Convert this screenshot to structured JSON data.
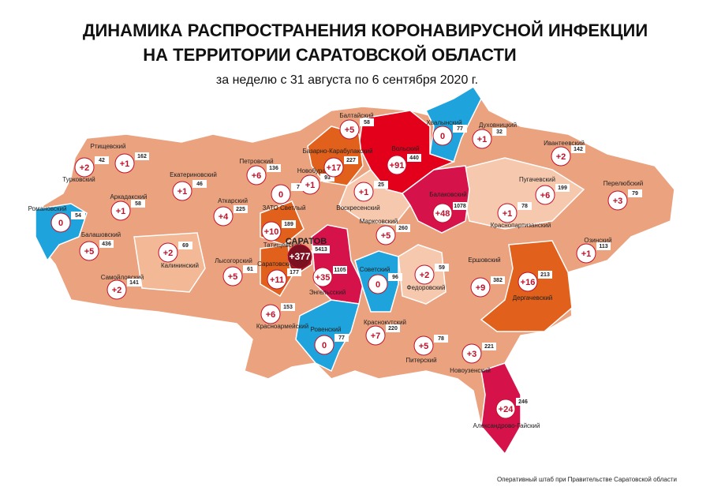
{
  "header": {
    "title_line1": "ДИНАМИКА РАСПРОСТРАНЕНИЯ КОРОНАВИРУСНОЙ ИНФЕКЦИИ",
    "title_line2": "НА ТЕРРИТОРИИ САРАТОВСКОЙ ОБЛАСТИ",
    "subtitle": "за неделю с 31 августа по 6 сентября 2020 г."
  },
  "districts": [
    {
      "name": "Турковский",
      "increase": "+2",
      "total": 42
    },
    {
      "name": "Ртищевский",
      "increase": "+1",
      "total": 162
    },
    {
      "name": "Аркадакский",
      "increase": "+1",
      "total": 58
    },
    {
      "name": "Романовский",
      "increase": "0",
      "total": 54
    },
    {
      "name": "Балашовский",
      "increase": "+5",
      "total": 436
    },
    {
      "name": "Самойловский",
      "increase": "+2",
      "total": 141
    },
    {
      "name": "Екатериновский",
      "increase": "+1",
      "total": 46
    },
    {
      "name": "Петровский",
      "increase": "+6",
      "total": 136
    },
    {
      "name": "Новобурасский",
      "increase": "+1",
      "total": 93
    },
    {
      "name": "Базарно-Карабулакский",
      "increase": "+17",
      "total": 227
    },
    {
      "name": "Балтайский",
      "increase": "+5",
      "total": 58
    },
    {
      "name": "Вольский",
      "increase": "+91",
      "total": 440
    },
    {
      "name": "Хвалынский",
      "increase": "0",
      "total": 77
    },
    {
      "name": "Духовницкий",
      "increase": "+1",
      "total": 32
    },
    {
      "name": "Ивантеевский",
      "increase": "+2",
      "total": 142
    },
    {
      "name": "Перелюбский",
      "increase": "+3",
      "total": 79
    },
    {
      "name": "Пугачевский",
      "increase": "+6",
      "total": 199
    },
    {
      "name": "Балаковский",
      "increase": "+48",
      "total": 1078
    },
    {
      "name": "Краснопартизанский",
      "increase": "+1",
      "total": 78
    },
    {
      "name": "Озинский",
      "increase": "+1",
      "total": 113
    },
    {
      "name": "Аткарский",
      "increase": "+4",
      "total": 225
    },
    {
      "name": "ЗАТО Светлый",
      "increase": "0",
      "total": 7
    },
    {
      "name": "Татищевский",
      "increase": "+10",
      "total": 189
    },
    {
      "name": "Воскресенский",
      "increase": "+1",
      "total": 25
    },
    {
      "name": "Калининский",
      "increase": "+2",
      "total": 69
    },
    {
      "name": "Лысогорский",
      "increase": "+5",
      "total": 61
    },
    {
      "name": "Саратовский",
      "increase": "+11",
      "total": 177
    },
    {
      "name": "САРАТОВ",
      "increase": "+377",
      "total": 5413
    },
    {
      "name": "Энгельсский",
      "increase": "+35",
      "total": 1105
    },
    {
      "name": "Марксовский",
      "increase": "+5",
      "total": 260
    },
    {
      "name": "Советский",
      "increase": "0",
      "total": 96
    },
    {
      "name": "Федоровский",
      "increase": "+2",
      "total": 59
    },
    {
      "name": "Ершовский",
      "increase": "+9",
      "total": 382
    },
    {
      "name": "Дергачевский",
      "increase": "+16",
      "total": 213
    },
    {
      "name": "Красноармейский",
      "increase": "+6",
      "total": 153
    },
    {
      "name": "Ровенский",
      "increase": "0",
      "total": 77
    },
    {
      "name": "Краснокутский",
      "increase": "+7",
      "total": 220
    },
    {
      "name": "Питерский",
      "increase": "+5",
      "total": 78
    },
    {
      "name": "Новоузенский",
      "increase": "+3",
      "total": 221
    },
    {
      "name": "Александрово-Гайский",
      "increase": "+24",
      "total": 246
    }
  ],
  "footer": "Оперативный штаб при Правительстве Саратовской области"
}
